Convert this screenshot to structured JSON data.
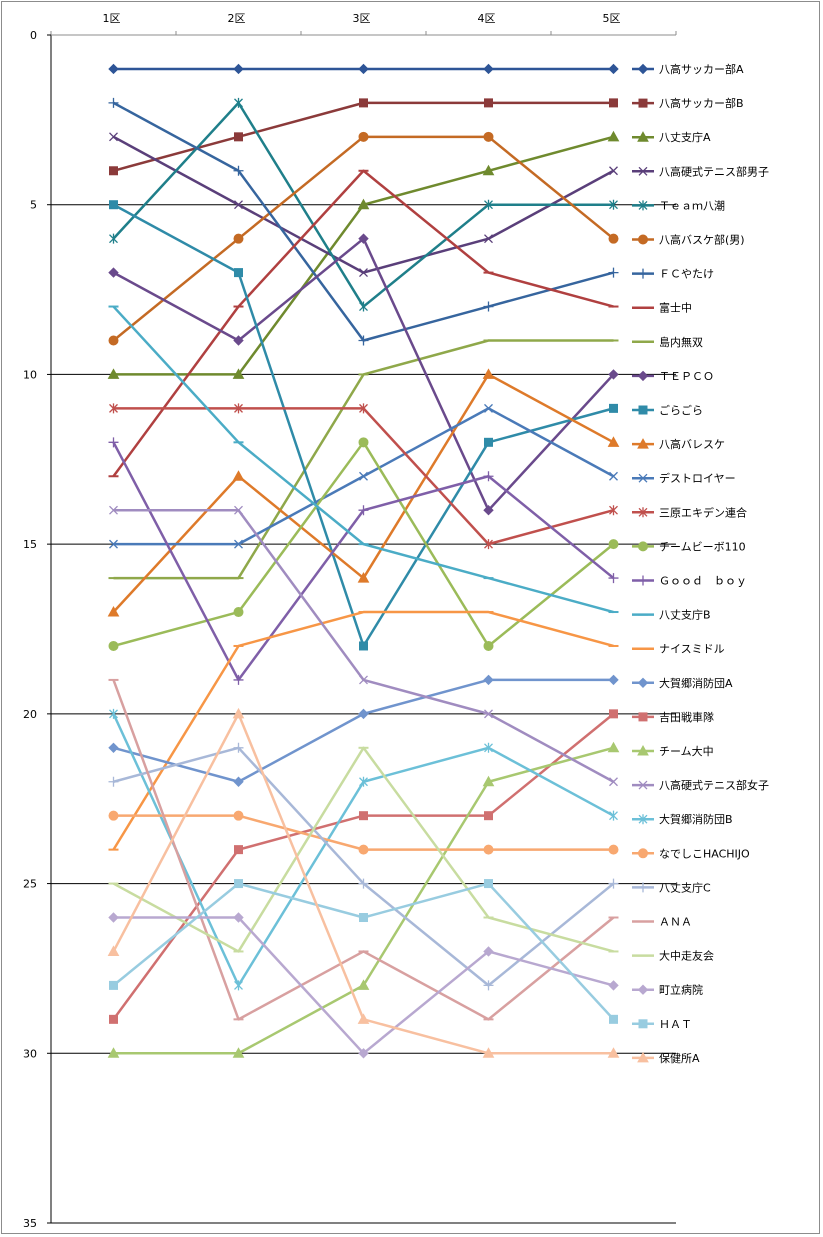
{
  "chart_data": {
    "type": "line",
    "categories": [
      "1区",
      "2区",
      "3区",
      "4区",
      "5区"
    ],
    "ylim": [
      0,
      35
    ],
    "y_reversed": true,
    "yticks": [
      0,
      5,
      10,
      15,
      20,
      25,
      30,
      35
    ],
    "grid": true,
    "legend_position": "right",
    "series": [
      {
        "name": "八高サッカー部A",
        "color": "#2e5597",
        "marker": "diamond",
        "values": [
          1,
          1,
          1,
          1,
          1
        ]
      },
      {
        "name": "八高サッカー部B",
        "color": "#8b3a3a",
        "marker": "square",
        "values": [
          4,
          3,
          2,
          2,
          2
        ]
      },
      {
        "name": "八丈支庁A",
        "color": "#6f8a2e",
        "marker": "triangle",
        "values": [
          10,
          10,
          5,
          4,
          3
        ]
      },
      {
        "name": "八高硬式テニス部男子",
        "color": "#5a3f7a",
        "marker": "x",
        "values": [
          3,
          5,
          7,
          6,
          4
        ]
      },
      {
        "name": "Ｔｅａｍ八潮",
        "color": "#1f7f8a",
        "marker": "star",
        "values": [
          6,
          2,
          8,
          5,
          5
        ]
      },
      {
        "name": "八高バスケ部(男)",
        "color": "#c46a24",
        "marker": "circle",
        "values": [
          9,
          6,
          3,
          3,
          6
        ]
      },
      {
        "name": "ＦＣやたけ",
        "color": "#36659e",
        "marker": "plus",
        "values": [
          2,
          4,
          9,
          8,
          7
        ]
      },
      {
        "name": "富士中",
        "color": "#b04040",
        "marker": "dash",
        "values": [
          13,
          8,
          4,
          7,
          8
        ]
      },
      {
        "name": "島内無双",
        "color": "#8fa84a",
        "marker": "dash",
        "values": [
          16,
          16,
          10,
          9,
          9
        ]
      },
      {
        "name": "ＴＥＰＣＯ",
        "color": "#6a4a8c",
        "marker": "diamond",
        "values": [
          7,
          9,
          6,
          14,
          10
        ]
      },
      {
        "name": "ごらごら",
        "color": "#2f8ba8",
        "marker": "square",
        "values": [
          5,
          7,
          18,
          12,
          11
        ]
      },
      {
        "name": "八高バレスケ",
        "color": "#de7a2a",
        "marker": "triangle",
        "values": [
          17,
          13,
          16,
          10,
          12
        ]
      },
      {
        "name": "デストロイヤー",
        "color": "#4a7ab8",
        "marker": "x",
        "values": [
          15,
          15,
          13,
          11,
          13
        ]
      },
      {
        "name": "三原エキデン連合",
        "color": "#c0504d",
        "marker": "star",
        "values": [
          11,
          11,
          11,
          15,
          14
        ]
      },
      {
        "name": "チームビーボ110",
        "color": "#9bbb59",
        "marker": "circle",
        "values": [
          18,
          17,
          12,
          18,
          15
        ]
      },
      {
        "name": "Ｇｏｏｄ　ｂｏｙ",
        "color": "#7f5fa8",
        "marker": "plus",
        "values": [
          12,
          19,
          14,
          13,
          16
        ]
      },
      {
        "name": "八丈支庁B",
        "color": "#4bacc6",
        "marker": "dash",
        "values": [
          8,
          12,
          15,
          16,
          17
        ]
      },
      {
        "name": "ナイスミドル",
        "color": "#f79646",
        "marker": "dash",
        "values": [
          24,
          18,
          17,
          17,
          18
        ]
      },
      {
        "name": "大賀郷消防団A",
        "color": "#7094cd",
        "marker": "diamond",
        "values": [
          21,
          22,
          20,
          19,
          19
        ]
      },
      {
        "name": "吉田戦車隊",
        "color": "#d07070",
        "marker": "square",
        "values": [
          29,
          24,
          23,
          23,
          20
        ]
      },
      {
        "name": "チーム大中",
        "color": "#a8c870",
        "marker": "triangle",
        "values": [
          30,
          30,
          28,
          22,
          21
        ]
      },
      {
        "name": "八高硬式テニス部女子",
        "color": "#a08cc0",
        "marker": "x",
        "values": [
          14,
          14,
          19,
          20,
          22
        ]
      },
      {
        "name": "大賀郷消防団B",
        "color": "#6cc0d8",
        "marker": "star",
        "values": [
          20,
          28,
          22,
          21,
          23
        ]
      },
      {
        "name": "なでしこHACHIJO",
        "color": "#f8a870",
        "marker": "circle",
        "values": [
          23,
          23,
          24,
          24,
          24
        ]
      },
      {
        "name": "八丈支庁C",
        "color": "#a8b8d8",
        "marker": "plus",
        "values": [
          22,
          21,
          25,
          28,
          25
        ]
      },
      {
        "name": "ＡＮＡ",
        "color": "#d8a0a0",
        "marker": "dash",
        "values": [
          19,
          29,
          27,
          29,
          26
        ]
      },
      {
        "name": "大中走友会",
        "color": "#c8dca0",
        "marker": "dash",
        "values": [
          25,
          27,
          21,
          26,
          27
        ]
      },
      {
        "name": "町立病院",
        "color": "#b8a8d0",
        "marker": "diamond",
        "values": [
          26,
          26,
          30,
          27,
          28
        ]
      },
      {
        "name": "ＨＡＴ",
        "color": "#98cce0",
        "marker": "square",
        "values": [
          28,
          25,
          26,
          25,
          29
        ]
      },
      {
        "name": "保健所A",
        "color": "#f8c0a0",
        "marker": "triangle",
        "values": [
          27,
          20,
          29,
          30,
          30
        ]
      }
    ]
  }
}
